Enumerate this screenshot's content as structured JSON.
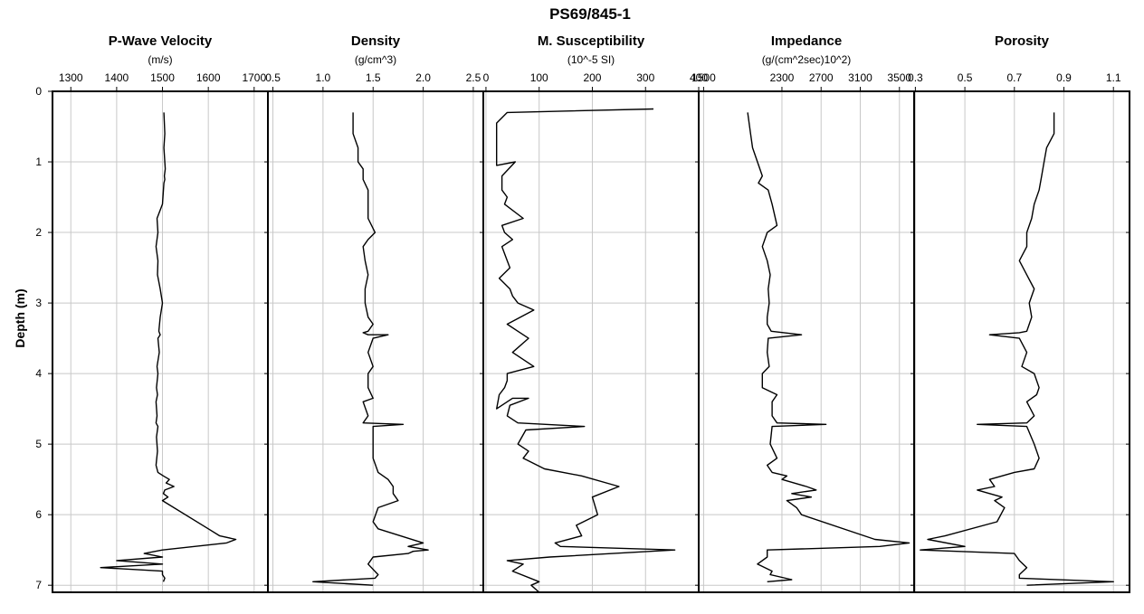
{
  "chart_data": {
    "type": "line",
    "title": "PS69/845-1",
    "ylabel": "Depth (m)",
    "ylim": [
      0,
      7.1
    ],
    "yticks": [
      "0",
      "1",
      "2",
      "3",
      "4",
      "5",
      "6",
      "7"
    ],
    "grid": true,
    "panels": [
      {
        "title": "P-Wave Velocity",
        "unit": "(m/s)",
        "xlim": [
          1260,
          1730
        ],
        "xticks": [
          1300,
          1400,
          1500,
          1600,
          1700
        ],
        "xtick_labels": [
          "1300",
          "1400",
          "1500",
          "1600",
          "1700"
        ],
        "x": [
          1503,
          1505,
          1503,
          1505,
          1506,
          1504,
          1505,
          1503,
          1500,
          1488,
          1490,
          1486,
          1490,
          1489,
          1495,
          1500,
          1495,
          1492,
          1495,
          1490,
          1493,
          1488,
          1490,
          1487,
          1489,
          1486,
          1488,
          1486,
          1490,
          1487,
          1489,
          1486,
          1490,
          1502,
          1515,
          1508,
          1525,
          1505,
          1502,
          1512,
          1500,
          1600,
          1625,
          1660,
          1640,
          1500,
          1460,
          1500,
          1400,
          1500,
          1365,
          1500,
          1500,
          1505,
          1502
        ],
        "y": [
          0.3,
          0.6,
          0.8,
          1.0,
          1.1,
          1.2,
          1.25,
          1.3,
          1.6,
          1.8,
          2.0,
          2.2,
          2.4,
          2.6,
          2.8,
          3.0,
          3.2,
          3.4,
          3.45,
          3.5,
          3.7,
          3.9,
          4.0,
          4.2,
          4.3,
          4.4,
          4.6,
          4.7,
          4.75,
          4.9,
          5.1,
          5.3,
          5.4,
          5.45,
          5.5,
          5.55,
          5.6,
          5.65,
          5.7,
          5.75,
          5.8,
          6.2,
          6.3,
          6.35,
          6.4,
          6.5,
          6.55,
          6.6,
          6.65,
          6.7,
          6.75,
          6.8,
          6.85,
          6.9,
          6.95
        ]
      },
      {
        "title": "Density",
        "unit": "(g/cm^3)",
        "xlim": [
          0.45,
          2.6
        ],
        "xticks": [
          0.5,
          1.0,
          1.5,
          2.0,
          2.5
        ],
        "xtick_labels": [
          "0.5",
          "1.0",
          "1.5",
          "2.0",
          "2.5"
        ],
        "x": [
          1.3,
          1.3,
          1.35,
          1.35,
          1.4,
          1.4,
          1.4,
          1.45,
          1.45,
          1.45,
          1.52,
          1.45,
          1.4,
          1.42,
          1.45,
          1.42,
          1.42,
          1.45,
          1.5,
          1.45,
          1.4,
          1.45,
          1.65,
          1.5,
          1.45,
          1.5,
          1.45,
          1.45,
          1.5,
          1.4,
          1.45,
          1.4,
          1.8,
          1.5,
          1.5,
          1.5,
          1.55,
          1.65,
          1.7,
          1.7,
          1.75,
          1.55,
          1.5,
          1.55,
          2.0,
          1.85,
          2.05,
          1.9,
          1.85,
          1.5,
          1.45,
          1.55,
          1.52,
          0.9,
          1.5
        ],
        "y": [
          0.3,
          0.6,
          0.8,
          1.0,
          1.1,
          1.2,
          1.25,
          1.4,
          1.6,
          1.8,
          2.0,
          2.1,
          2.2,
          2.4,
          2.6,
          2.8,
          3.0,
          3.2,
          3.3,
          3.4,
          3.42,
          3.45,
          3.45,
          3.5,
          3.7,
          3.9,
          4.0,
          4.2,
          4.35,
          4.4,
          4.6,
          4.7,
          4.72,
          4.75,
          5.0,
          5.2,
          5.4,
          5.5,
          5.6,
          5.7,
          5.8,
          5.9,
          6.1,
          6.2,
          6.4,
          6.45,
          6.5,
          6.52,
          6.55,
          6.6,
          6.7,
          6.85,
          6.9,
          6.95,
          7.0
        ]
      },
      {
        "title": "M. Susceptibility",
        "unit": "(10^-5 SI)",
        "xlim": [
          -5,
          400
        ],
        "xticks": [
          0,
          100,
          200,
          300,
          400
        ],
        "xtick_labels": [
          "0",
          "100",
          "200",
          "300",
          "400"
        ],
        "x": [
          315,
          40,
          20,
          20,
          20,
          20,
          20,
          55,
          30,
          30,
          40,
          35,
          70,
          30,
          35,
          50,
          30,
          40,
          45,
          25,
          45,
          50,
          60,
          90,
          40,
          60,
          80,
          50,
          90,
          40,
          40,
          35,
          25,
          20,
          50,
          80,
          45,
          40,
          60,
          185,
          75,
          60,
          80,
          70,
          110,
          180,
          250,
          200,
          210,
          170,
          180,
          130,
          140,
          355,
          120,
          40,
          70,
          50,
          100,
          85,
          100
        ],
        "y": [
          0.25,
          0.3,
          0.45,
          0.6,
          0.8,
          1.0,
          1.05,
          1.0,
          1.2,
          1.4,
          1.5,
          1.6,
          1.8,
          1.9,
          2.0,
          2.1,
          2.2,
          2.4,
          2.5,
          2.65,
          2.8,
          2.9,
          3.0,
          3.1,
          3.3,
          3.4,
          3.5,
          3.7,
          3.9,
          4.0,
          4.1,
          4.2,
          4.3,
          4.5,
          4.35,
          4.35,
          4.45,
          4.6,
          4.7,
          4.75,
          4.8,
          5.0,
          5.1,
          5.2,
          5.35,
          5.45,
          5.6,
          5.75,
          6.0,
          6.15,
          6.3,
          6.4,
          6.45,
          6.5,
          6.6,
          6.65,
          6.7,
          6.8,
          6.95,
          7.0,
          7.1
        ]
      },
      {
        "title": "Impedance",
        "unit": "(g/(cm^2sec)10^2)",
        "xlim": [
          1450,
          3650
        ],
        "xticks": [
          1500,
          2300,
          2700,
          3100,
          3500
        ],
        "xtick_labels": [
          "1500",
          "2300",
          "2700",
          "3100",
          "3500"
        ],
        "x": [
          1950,
          1980,
          2000,
          2050,
          2100,
          2060,
          2160,
          2200,
          2250,
          2150,
          2100,
          2150,
          2180,
          2160,
          2170,
          2150,
          2150,
          2190,
          2500,
          2160,
          2150,
          2170,
          2100,
          2100,
          2250,
          2200,
          2200,
          2250,
          2750,
          2200,
          2180,
          2250,
          2150,
          2200,
          2350,
          2300,
          2550,
          2650,
          2400,
          2600,
          2350,
          2450,
          2500,
          3250,
          3600,
          3300,
          2150,
          2150,
          2050,
          2200,
          2180,
          2400,
          2150
        ],
        "y": [
          0.3,
          0.6,
          0.8,
          1.0,
          1.2,
          1.3,
          1.4,
          1.6,
          1.9,
          2.0,
          2.2,
          2.4,
          2.6,
          2.8,
          3.0,
          3.2,
          3.3,
          3.4,
          3.45,
          3.5,
          3.7,
          3.9,
          4.0,
          4.2,
          4.3,
          4.4,
          4.6,
          4.7,
          4.72,
          4.75,
          5.0,
          5.2,
          5.3,
          5.4,
          5.45,
          5.5,
          5.6,
          5.65,
          5.7,
          5.75,
          5.8,
          5.9,
          6.0,
          6.35,
          6.4,
          6.45,
          6.5,
          6.6,
          6.7,
          6.8,
          6.85,
          6.92,
          6.95
        ]
      },
      {
        "title": "Porosity",
        "unit": "",
        "xlim": [
          0.295,
          1.165
        ],
        "xticks": [
          0.3,
          0.5,
          0.7,
          0.9,
          1.1
        ],
        "xtick_labels": [
          "0.3",
          "0.5",
          "0.7",
          "0.9",
          "1.1"
        ],
        "x": [
          0.86,
          0.86,
          0.83,
          0.82,
          0.81,
          0.8,
          0.78,
          0.77,
          0.75,
          0.75,
          0.72,
          0.75,
          0.78,
          0.76,
          0.77,
          0.76,
          0.75,
          0.72,
          0.6,
          0.72,
          0.75,
          0.73,
          0.78,
          0.8,
          0.79,
          0.75,
          0.78,
          0.75,
          0.55,
          0.75,
          0.78,
          0.8,
          0.78,
          0.7,
          0.6,
          0.62,
          0.55,
          0.6,
          0.65,
          0.62,
          0.66,
          0.63,
          0.42,
          0.35,
          0.5,
          0.32,
          0.7,
          0.72,
          0.75,
          0.72,
          0.72,
          1.1,
          0.75
        ],
        "y": [
          0.3,
          0.6,
          0.8,
          1.0,
          1.2,
          1.4,
          1.6,
          1.8,
          2.0,
          2.2,
          2.4,
          2.6,
          2.8,
          3.0,
          3.2,
          3.3,
          3.4,
          3.42,
          3.45,
          3.5,
          3.7,
          3.9,
          4.0,
          4.2,
          4.3,
          4.4,
          4.6,
          4.7,
          4.72,
          4.75,
          5.0,
          5.2,
          5.35,
          5.4,
          5.5,
          5.6,
          5.65,
          5.7,
          5.75,
          5.8,
          5.9,
          6.1,
          6.3,
          6.35,
          6.45,
          6.5,
          6.55,
          6.65,
          6.75,
          6.85,
          6.9,
          6.95,
          7.0
        ]
      }
    ]
  }
}
